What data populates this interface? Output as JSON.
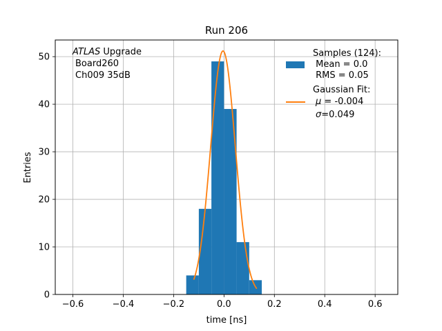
{
  "chart_data": {
    "type": "bar",
    "title": "Run 206",
    "xlabel": "time [ns]",
    "ylabel": "Entries",
    "xlim": [
      -0.67,
      0.69
    ],
    "ylim": [
      0,
      53.5
    ],
    "xticks": [
      -0.6,
      -0.4,
      -0.2,
      0.0,
      0.2,
      0.4,
      0.6
    ],
    "xtick_labels": [
      "−0.6",
      "−0.4",
      "−0.2",
      "0.0",
      "0.2",
      "0.4",
      "0.6"
    ],
    "yticks": [
      0,
      10,
      20,
      30,
      40,
      50
    ],
    "ytick_labels": [
      "0",
      "10",
      "20",
      "30",
      "40",
      "50"
    ],
    "grid": true,
    "histogram": {
      "bin_edges": [
        -0.15,
        -0.1,
        -0.05,
        0.0,
        0.05,
        0.1,
        0.15
      ],
      "counts": [
        4,
        18,
        49,
        39,
        11,
        3
      ],
      "color": "#1f77b4"
    },
    "fit": {
      "type": "gaussian",
      "amplitude": 51.2,
      "mu": -0.004,
      "sigma": 0.049,
      "x_range": [
        -0.12,
        0.13
      ],
      "color": "#ff7f0e"
    },
    "annotation": {
      "italic": "ATLAS",
      "upright": " Upgrade",
      "lines": [
        "Board260",
        "Ch009 35dB"
      ]
    },
    "legend": {
      "placement": "top-right",
      "hist_lines": [
        "Samples (124):",
        " Mean = 0.0",
        " RMS = 0.05"
      ],
      "fit_title": "Gaussian Fit:",
      "fit_mu_value": " = -0.004",
      "fit_sigma_value": "=0.049"
    }
  }
}
